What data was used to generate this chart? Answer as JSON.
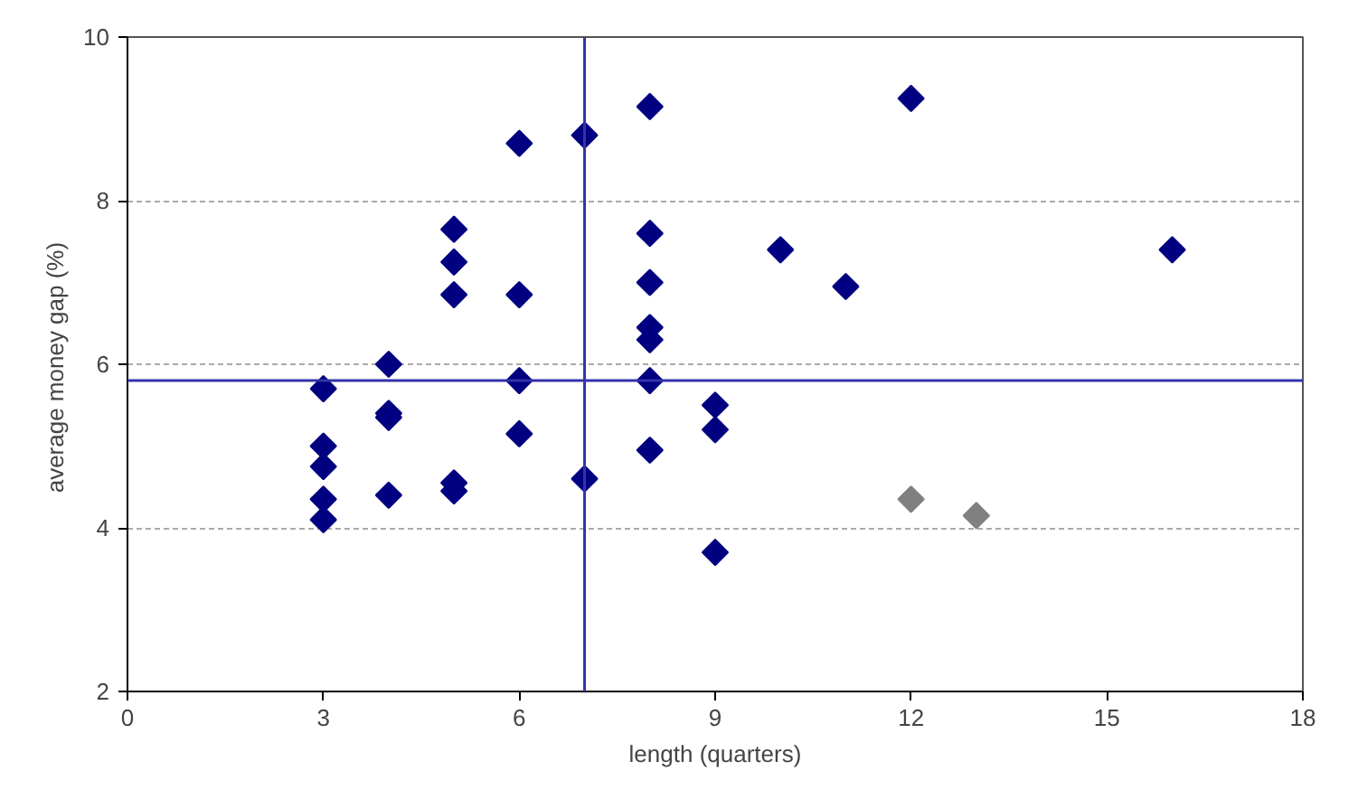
{
  "chart_data": {
    "type": "scatter",
    "xlabel": "length (quarters)",
    "ylabel": "average money gap  (%)",
    "xlim": [
      0,
      18
    ],
    "xticks": [
      0,
      3,
      6,
      9,
      12,
      15,
      18
    ],
    "ylim": [
      2,
      10
    ],
    "yticks": [
      2,
      4,
      6,
      8,
      10
    ],
    "grid": "y",
    "marker": "diamond",
    "series": [
      {
        "color": "#000080",
        "x": [
          3,
          3,
          3,
          3,
          3,
          4,
          4,
          4,
          4,
          5,
          5,
          5,
          5,
          5,
          6,
          6,
          6,
          6,
          7,
          7,
          8,
          8,
          8,
          8,
          8,
          8,
          8,
          9,
          9,
          9,
          10,
          11,
          12,
          16
        ],
        "values": [
          5.7,
          5.0,
          4.75,
          4.35,
          4.1,
          6.0,
          5.4,
          5.35,
          4.4,
          7.65,
          7.25,
          6.85,
          4.55,
          4.45,
          8.7,
          6.85,
          5.8,
          5.15,
          8.8,
          4.6,
          9.15,
          7.6,
          7.0,
          6.45,
          6.3,
          5.8,
          4.95,
          5.5,
          5.2,
          3.7,
          7.4,
          6.95,
          9.25,
          7.4
        ]
      },
      {
        "color": "#808080",
        "x": [
          12,
          13
        ],
        "values": [
          4.35,
          4.15
        ]
      }
    ],
    "ref_lines": [
      {
        "axis": "x",
        "value": 7,
        "color": "#3333aa"
      },
      {
        "axis": "y",
        "value": 5.8,
        "color": "#3333aa"
      }
    ]
  }
}
